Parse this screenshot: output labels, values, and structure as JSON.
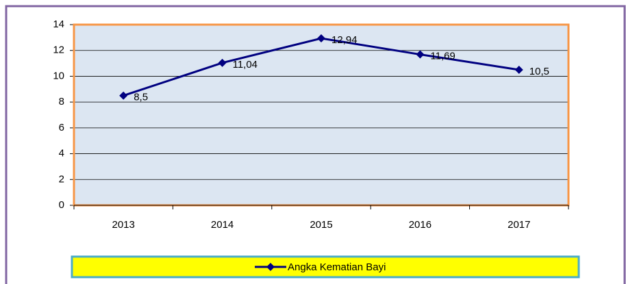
{
  "chart_data": {
    "type": "line",
    "categories": [
      "2013",
      "2014",
      "2015",
      "2016",
      "2017"
    ],
    "series": [
      {
        "name": "Angka Kematian Bayi",
        "color": "#000080",
        "values": [
          8.5,
          11.04,
          12.94,
          11.69,
          10.5
        ],
        "value_labels": [
          "8,5",
          "11,04",
          "12,94",
          "11,69",
          "10,5"
        ]
      }
    ],
    "ylim": [
      0,
      14
    ],
    "yticks": [
      0,
      2,
      4,
      6,
      8,
      10,
      12,
      14
    ],
    "grid": true,
    "legend": "bottom",
    "plot_background": "#dce6f2"
  }
}
